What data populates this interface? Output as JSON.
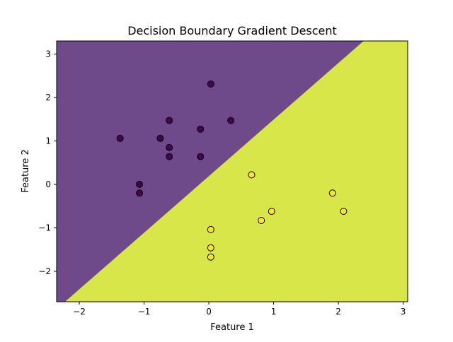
{
  "chart_data": {
    "type": "scatter",
    "title": "Decision Boundary Gradient Descent",
    "xlabel": "Feature 1",
    "ylabel": "Feature 2",
    "xlim": [
      -2.35,
      3.07
    ],
    "ylim": [
      -2.7,
      3.3
    ],
    "xticks": [
      -2,
      -1,
      0,
      1,
      2,
      3
    ],
    "yticks": [
      -2,
      -1,
      0,
      1,
      2,
      3
    ],
    "xtick_labels": [
      "−2",
      "−1",
      "0",
      "1",
      "2",
      "3"
    ],
    "ytick_labels": [
      "−2",
      "−1",
      "0",
      "1",
      "2",
      "3"
    ],
    "grid": false,
    "legend": "none",
    "decision_boundary": {
      "description_points": [
        [
          -2.22,
          -2.7
        ],
        [
          2.39,
          3.3
        ]
      ],
      "class_0_region_color": "#6e4a8a",
      "class_1_region_color": "#d9e64a"
    },
    "series": [
      {
        "class": 0,
        "color": "#440154",
        "points": [
          [
            0.03,
            2.31
          ],
          [
            -0.61,
            1.47
          ],
          [
            0.34,
            1.47
          ],
          [
            -0.13,
            1.27
          ],
          [
            -1.37,
            1.06
          ],
          [
            -0.75,
            1.06
          ],
          [
            -0.61,
            0.85
          ],
          [
            -0.61,
            0.64
          ],
          [
            -0.13,
            0.64
          ],
          [
            -1.07,
            0.0
          ],
          [
            -1.07,
            -0.2
          ]
        ]
      },
      {
        "class": 1,
        "color": "#fde725",
        "points": [
          [
            0.66,
            0.22
          ],
          [
            1.91,
            -0.2
          ],
          [
            0.97,
            -0.62
          ],
          [
            2.08,
            -0.62
          ],
          [
            0.81,
            -0.83
          ],
          [
            0.03,
            -1.04
          ],
          [
            0.03,
            -1.46
          ],
          [
            0.03,
            -1.67
          ]
        ]
      }
    ]
  }
}
